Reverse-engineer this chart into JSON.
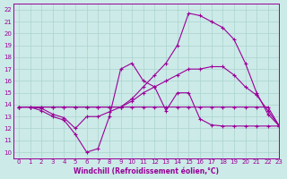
{
  "xlabel": "Windchill (Refroidissement éolien,°C)",
  "xlim": [
    -0.5,
    23
  ],
  "ylim": [
    9.5,
    22.5
  ],
  "xticks": [
    0,
    1,
    2,
    3,
    4,
    5,
    6,
    7,
    8,
    9,
    10,
    11,
    12,
    13,
    14,
    15,
    16,
    17,
    18,
    19,
    20,
    21,
    22,
    23
  ],
  "yticks": [
    10,
    11,
    12,
    13,
    14,
    15,
    16,
    17,
    18,
    19,
    20,
    21,
    22
  ],
  "bg_color": "#cceae7",
  "grid_color": "#aad4d0",
  "line_color": "#990099",
  "series": [
    {
      "x": [
        0,
        1,
        2,
        3,
        4,
        5,
        6,
        7,
        8,
        9,
        10,
        11,
        12,
        13,
        14,
        15,
        16,
        17,
        18,
        19,
        20,
        21,
        22,
        23
      ],
      "y": [
        13.8,
        13.8,
        13.7,
        13.2,
        12.9,
        12.0,
        13.0,
        13.0,
        13.4,
        13.8,
        14.3,
        15.0,
        15.5,
        16.0,
        16.5,
        17.0,
        17.0,
        17.2,
        17.2,
        16.5,
        15.5,
        14.8,
        13.5,
        12.2
      ]
    },
    {
      "x": [
        0,
        1,
        2,
        3,
        4,
        5,
        6,
        7,
        8,
        9,
        10,
        11,
        12,
        13,
        14,
        15,
        16,
        17,
        18,
        19,
        20,
        21,
        22,
        23
      ],
      "y": [
        13.8,
        13.8,
        13.8,
        13.8,
        13.8,
        13.8,
        13.8,
        13.8,
        13.8,
        13.8,
        13.8,
        13.8,
        13.8,
        13.8,
        13.8,
        13.8,
        13.8,
        13.8,
        13.8,
        13.8,
        13.8,
        13.8,
        13.8,
        12.2
      ]
    },
    {
      "x": [
        0,
        1,
        2,
        3,
        4,
        5,
        6,
        7,
        8,
        9,
        10,
        11,
        12,
        13,
        14,
        15,
        16,
        17,
        18,
        19,
        20,
        21,
        22,
        23
      ],
      "y": [
        13.8,
        13.8,
        13.5,
        13.0,
        12.7,
        11.5,
        10.0,
        10.3,
        13.0,
        17.0,
        17.5,
        16.0,
        15.5,
        13.5,
        15.0,
        15.0,
        12.8,
        12.3,
        12.2,
        12.2,
        12.2,
        12.2,
        12.2,
        12.2
      ]
    },
    {
      "x": [
        0,
        1,
        2,
        3,
        4,
        5,
        6,
        7,
        8,
        9,
        10,
        11,
        12,
        13,
        14,
        15,
        16,
        17,
        18,
        19,
        20,
        21,
        22,
        23
      ],
      "y": [
        13.8,
        13.8,
        13.8,
        13.8,
        13.8,
        13.8,
        13.8,
        13.8,
        13.8,
        13.8,
        14.5,
        15.5,
        16.5,
        17.5,
        19.0,
        21.7,
        21.5,
        21.0,
        20.5,
        19.5,
        17.5,
        15.0,
        13.2,
        12.2
      ]
    }
  ]
}
